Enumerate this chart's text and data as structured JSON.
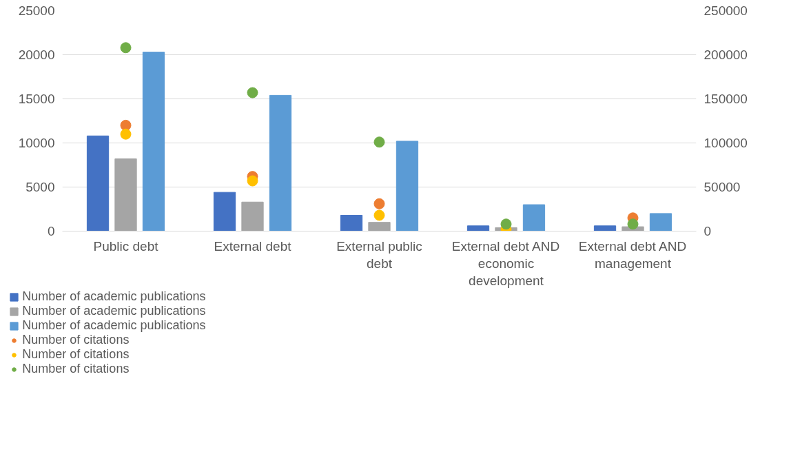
{
  "chart_data": {
    "type": "bar",
    "categories": [
      "Public debt",
      "External debt",
      "External public debt",
      "External debt AND economic development",
      "External debt AND management"
    ],
    "series": [
      {
        "name": "Number of academic publications",
        "color": "#4472c4",
        "values": [
          10800,
          4400,
          1800,
          600,
          600
        ]
      },
      {
        "name": "Number of academic publications",
        "color": "#a5a5a5",
        "values": [
          8200,
          3300,
          1000,
          400,
          500
        ]
      },
      {
        "name": "Number of academic publications",
        "color": "#5b9bd5",
        "values": [
          20300,
          15400,
          10200,
          3000,
          2000
        ]
      },
      {
        "name": "Number of citations",
        "color": "#ed7d31",
        "type": "scatter",
        "axis": "y2",
        "values": [
          120000,
          62000,
          31000,
          null,
          15000
        ]
      },
      {
        "name": "Number of citations",
        "color": "#ffc000",
        "type": "scatter",
        "axis": "y2",
        "values": [
          110000,
          57000,
          18000,
          2000,
          null
        ]
      },
      {
        "name": "Number of citations",
        "color": "#70ad47",
        "type": "scatter",
        "axis": "y2",
        "values": [
          208000,
          157000,
          101000,
          8000,
          8000
        ]
      }
    ],
    "ylim": [
      0,
      25000
    ],
    "yticks": [
      0,
      5000,
      10000,
      15000,
      20000,
      25000
    ],
    "y2lim": [
      0,
      250000
    ],
    "y2ticks": [
      0,
      50000,
      100000,
      150000,
      200000,
      250000
    ],
    "grid": "y",
    "legend": "bottom left",
    "marker": "circle"
  }
}
